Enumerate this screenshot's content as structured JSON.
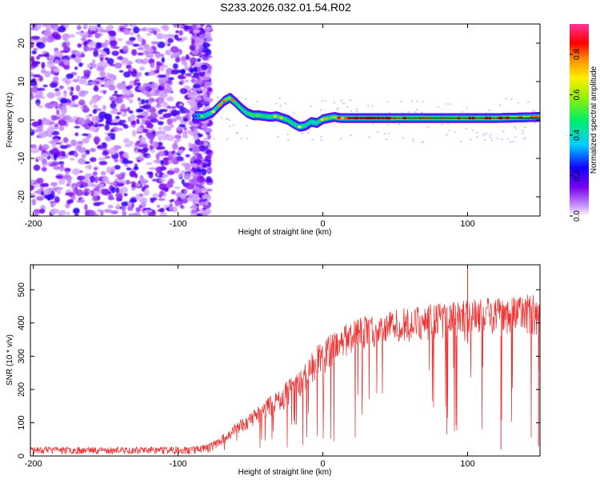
{
  "figure_title": "S233.2026.032.01.54.R02",
  "chart_data": [
    {
      "type": "heatmap",
      "id": "spectrogram",
      "xlabel": "Height of straight line (km)",
      "ylabel": "Frequency (Hz)",
      "xlim": [
        -202,
        150
      ],
      "ylim": [
        -25,
        25
      ],
      "xticks": [
        -200,
        -100,
        0,
        100
      ],
      "xtick_labels": [
        "-200",
        "-100",
        "0",
        "100"
      ],
      "yticks": [
        -20,
        -10,
        0,
        10,
        20
      ],
      "ytick_labels": [
        "-20",
        "-10",
        "0",
        "10",
        "20"
      ],
      "noise_region_km": [
        -202,
        -78
      ],
      "fit_line": {
        "x0": 18,
        "x1": 150,
        "y": 0.5
      },
      "ridge": {
        "x": [
          -88,
          -82,
          -76,
          -72,
          -68,
          -64,
          -60,
          -56,
          -52,
          -48,
          -44,
          -40,
          -36,
          -32,
          -28,
          -24,
          -20,
          -16,
          -12,
          -8,
          -4,
          0,
          4,
          8,
          12,
          18,
          30,
          45,
          60,
          80,
          100,
          120,
          150
        ],
        "freq": [
          1.0,
          1.0,
          2.0,
          3.5,
          5.0,
          5.8,
          4.5,
          3.0,
          1.8,
          1.2,
          1.2,
          1.0,
          0.8,
          1.0,
          0.5,
          0.0,
          -1.0,
          -1.8,
          -1.5,
          -0.5,
          -0.8,
          0.2,
          0.5,
          0.8,
          0.5,
          0.5,
          0.5,
          0.5,
          0.5,
          0.5,
          0.5,
          0.5,
          0.8
        ],
        "amplitude": [
          0.3,
          0.35,
          0.45,
          0.55,
          0.6,
          0.62,
          0.55,
          0.5,
          0.5,
          0.55,
          0.55,
          0.5,
          0.5,
          0.5,
          0.5,
          0.5,
          0.45,
          0.45,
          0.45,
          0.45,
          0.45,
          0.5,
          0.55,
          0.6,
          0.7,
          0.85,
          0.9,
          0.85,
          0.6,
          0.55,
          0.65,
          0.65,
          0.6
        ]
      },
      "colorbar": {
        "label": "Normalized spectral amplitude",
        "range": [
          0.0,
          0.95
        ],
        "ticks": [
          0.0,
          0.2,
          0.4,
          0.6,
          0.8
        ],
        "tick_labels": [
          "0.0",
          "0.2",
          "0.4",
          "0.6",
          "0.8"
        ]
      }
    },
    {
      "type": "line",
      "id": "snr",
      "xlabel": "Height of straight line (km)",
      "ylabel": "SNR (10 * v/v)",
      "xlim": [
        -202,
        150
      ],
      "ylim": [
        0,
        575
      ],
      "xticks": [
        -200,
        -100,
        0,
        100
      ],
      "xtick_labels": [
        "-200",
        "-100",
        "0",
        "100"
      ],
      "yticks": [
        0,
        100,
        200,
        300,
        400,
        500
      ],
      "ytick_labels": [
        "0",
        "100",
        "200",
        "300",
        "400",
        "500"
      ],
      "color": "#ee3333",
      "envelope": {
        "x": [
          -202,
          -180,
          -150,
          -120,
          -90,
          -78,
          -70,
          -60,
          -50,
          -40,
          -30,
          -20,
          -10,
          0,
          10,
          20,
          30,
          40,
          50,
          60,
          70,
          80,
          90,
          100,
          110,
          120,
          130,
          140,
          150
        ],
        "lower": [
          5,
          5,
          5,
          5,
          5,
          10,
          30,
          60,
          80,
          110,
          130,
          160,
          200,
          240,
          280,
          310,
          320,
          330,
          340,
          340,
          345,
          350,
          355,
          340,
          360,
          360,
          365,
          370,
          360
        ],
        "upper": [
          28,
          28,
          27,
          28,
          30,
          40,
          60,
          100,
          130,
          170,
          200,
          250,
          300,
          350,
          380,
          410,
          420,
          430,
          440,
          450,
          455,
          460,
          465,
          470,
          475,
          480,
          480,
          485,
          485
        ]
      },
      "spikes": [
        {
          "x": 100,
          "y": 575
        },
        {
          "x": 123,
          "y": 20
        },
        {
          "x": 149,
          "y": 30
        }
      ]
    }
  ]
}
